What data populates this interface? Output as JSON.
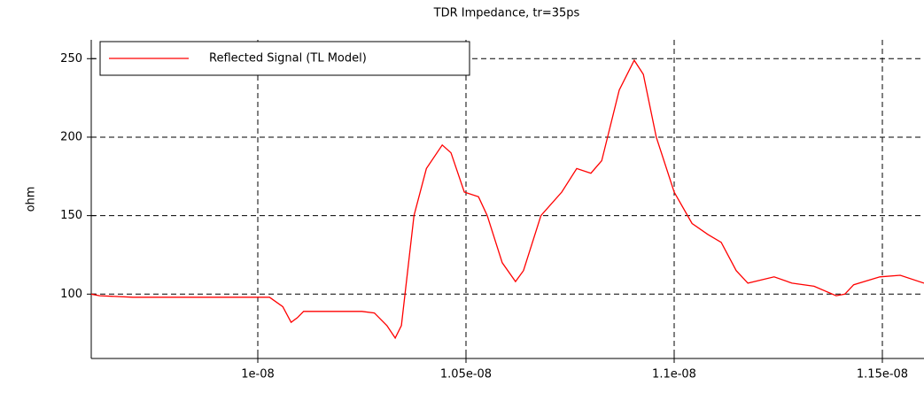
{
  "chart_data": {
    "type": "line",
    "title": "TDR Impedance, tr=35ps",
    "ylabel": "ohm",
    "x": [
      9.6e-09,
      9.62e-09,
      9.7e-09,
      9.8e-09,
      9.9e-09,
      1e-08,
      1.0028e-08,
      1.006e-08,
      1.008e-08,
      1.0095e-08,
      1.011e-08,
      1.015e-08,
      1.02e-08,
      1.025e-08,
      1.028e-08,
      1.031e-08,
      1.033e-08,
      1.0345e-08,
      1.0375e-08,
      1.0405e-08,
      1.0443e-08,
      1.0464e-08,
      1.0496e-08,
      1.053e-08,
      1.0551e-08,
      1.0587e-08,
      1.0619e-08,
      1.0638e-08,
      1.068e-08,
      1.073e-08,
      1.0766e-08,
      1.08e-08,
      1.0826e-08,
      1.0868e-08,
      1.0904e-08,
      1.0926e-08,
      1.0957e-08,
      1.1e-08,
      1.1043e-08,
      1.1081e-08,
      1.1113e-08,
      1.1149e-08,
      1.1177e-08,
      1.124e-08,
      1.1283e-08,
      1.1336e-08,
      1.1389e-08,
      1.141e-08,
      1.1431e-08,
      1.1494e-08,
      1.1543e-08,
      1.16e-08
    ],
    "series": [
      {
        "name": "Reflected Signal (TL Model)",
        "color": "#ff0000",
        "values": [
          100,
          99,
          98,
          98,
          98,
          98,
          98,
          92,
          82,
          85,
          89,
          89,
          89,
          89,
          88,
          80,
          72,
          80,
          150,
          180,
          195,
          190,
          165,
          162,
          150,
          120,
          108,
          115,
          150,
          165,
          180,
          177,
          185,
          230,
          249,
          240,
          200,
          165,
          145,
          138,
          133,
          115,
          107,
          111,
          107,
          105,
          99,
          100,
          106,
          111,
          112,
          107
        ]
      }
    ],
    "xlim": [
      9.6e-09,
      1.16e-08
    ],
    "ylim": [
      59,
      262
    ],
    "xticks": [
      {
        "value": 1e-08,
        "label": "1e-08"
      },
      {
        "value": 1.05e-08,
        "label": "1.05e-08"
      },
      {
        "value": 1.1e-08,
        "label": "1.1e-08"
      },
      {
        "value": 1.15e-08,
        "label": "1.15e-08"
      }
    ],
    "yticks": [
      100,
      150,
      200,
      250
    ],
    "grid": true,
    "legend": "upper left"
  }
}
